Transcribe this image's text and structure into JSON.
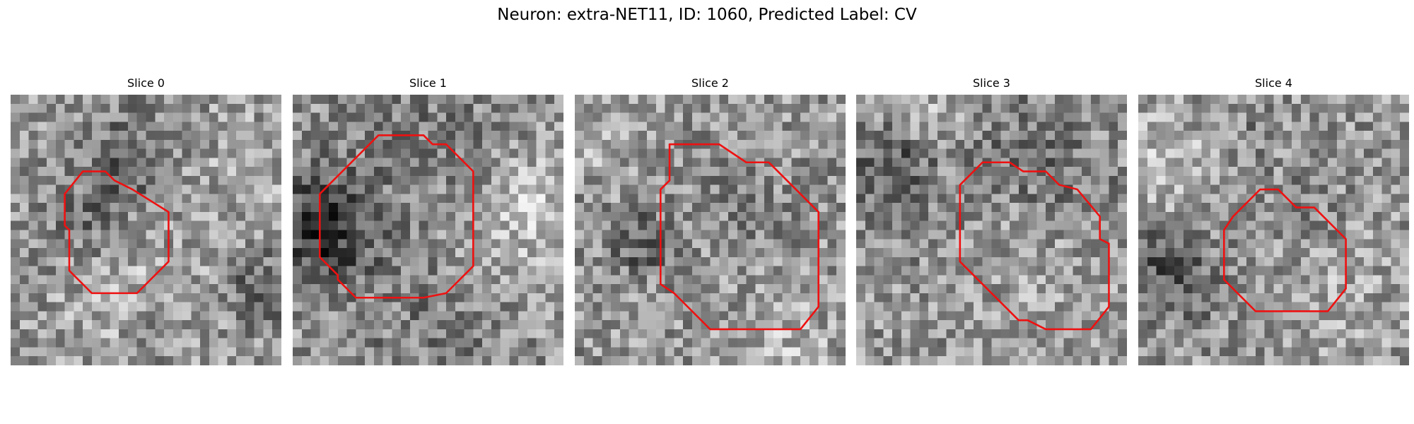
{
  "figure": {
    "suptitle": "Neuron: extra-NET11, ID: 1060, Predicted Label: CV",
    "colormap": "gray",
    "contour_color": "#ee1111",
    "grid_size": 30
  },
  "panels": [
    {
      "title": "Slice 0",
      "seed": 101,
      "dark_blobs": [
        [
          12,
          7,
          4,
          -45
        ],
        [
          16,
          26,
          3,
          -40
        ],
        [
          27,
          21,
          3,
          -60
        ],
        [
          8,
          14,
          3,
          -30
        ]
      ],
      "light_blobs": [
        [
          15,
          24,
          6,
          35
        ],
        [
          26,
          8,
          5,
          20
        ]
      ],
      "contour": [
        [
          8,
          8.5
        ],
        [
          10.5,
          8.5
        ],
        [
          11.5,
          9.5
        ],
        [
          13.5,
          10.5
        ],
        [
          17.5,
          13
        ],
        [
          17.5,
          18.5
        ],
        [
          14,
          22
        ],
        [
          9,
          22
        ],
        [
          6.5,
          19.5
        ],
        [
          6.5,
          15
        ],
        [
          6,
          14.5
        ],
        [
          6,
          11
        ]
      ]
    },
    {
      "title": "Slice 1",
      "seed": 202,
      "dark_blobs": [
        [
          2,
          14,
          4,
          -70
        ],
        [
          15,
          3,
          7,
          -25
        ],
        [
          15,
          26,
          6,
          -25
        ],
        [
          4,
          15,
          5,
          -35
        ]
      ],
      "light_blobs": [
        [
          25,
          14,
          5,
          30
        ],
        [
          27,
          10,
          4,
          25
        ]
      ],
      "contour": [
        [
          9.5,
          4.5
        ],
        [
          14.5,
          4.5
        ],
        [
          15.5,
          5.5
        ],
        [
          17,
          5.5
        ],
        [
          20,
          8.5
        ],
        [
          20,
          19
        ],
        [
          17,
          22
        ],
        [
          14.5,
          22.5
        ],
        [
          7,
          22.5
        ],
        [
          5,
          20.5
        ],
        [
          5,
          20
        ],
        [
          3,
          18
        ],
        [
          3,
          11
        ]
      ]
    },
    {
      "title": "Slice 2",
      "seed": 303,
      "dark_blobs": [
        [
          7,
          16,
          2.5,
          -60
        ],
        [
          18,
          10,
          4,
          -20
        ]
      ],
      "light_blobs": [
        [
          1,
          4,
          3,
          30
        ],
        [
          23,
          27,
          4,
          30
        ]
      ],
      "contour": [
        [
          10.5,
          5.5
        ],
        [
          16,
          5.5
        ],
        [
          17.5,
          6.5
        ],
        [
          19,
          7.5
        ],
        [
          21.5,
          7.5
        ],
        [
          27,
          13
        ],
        [
          27,
          23.5
        ],
        [
          25,
          26
        ],
        [
          15,
          26
        ],
        [
          11,
          22
        ],
        [
          9.5,
          21
        ],
        [
          9.5,
          10.5
        ],
        [
          10.5,
          9.5
        ],
        [
          10.5,
          8
        ]
      ]
    },
    {
      "title": "Slice 3",
      "seed": 404,
      "dark_blobs": [
        [
          3,
          7,
          3,
          -60
        ],
        [
          5,
          12,
          4,
          -25
        ],
        [
          18,
          5,
          4,
          -35
        ],
        [
          24,
          12,
          5,
          -25
        ]
      ],
      "light_blobs": [
        [
          7,
          1,
          3,
          30
        ],
        [
          20,
          18,
          5,
          25
        ]
      ],
      "contour": [
        [
          14,
          7.5
        ],
        [
          17,
          7.5
        ],
        [
          18.5,
          8.5
        ],
        [
          21,
          8.5
        ],
        [
          22.5,
          10
        ],
        [
          24.5,
          10.5
        ],
        [
          27,
          13.5
        ],
        [
          27,
          16
        ],
        [
          28,
          16.5
        ],
        [
          28,
          23.5
        ],
        [
          26,
          26
        ],
        [
          21,
          26
        ],
        [
          19,
          25
        ],
        [
          18,
          25
        ],
        [
          12.5,
          19.5
        ],
        [
          11.5,
          18.5
        ],
        [
          11.5,
          10
        ]
      ]
    },
    {
      "title": "Slice 4",
      "seed": 505,
      "dark_blobs": [
        [
          1,
          17,
          3,
          -55
        ],
        [
          5,
          20,
          4,
          -35
        ],
        [
          12,
          4,
          3,
          -20
        ],
        [
          18,
          13,
          3,
          -25
        ]
      ],
      "light_blobs": [
        [
          3,
          8,
          5,
          35
        ],
        [
          21,
          21,
          5,
          20
        ]
      ],
      "contour": [
        [
          13.5,
          10.5
        ],
        [
          15.5,
          10.5
        ],
        [
          17.5,
          12.5
        ],
        [
          19.5,
          12.5
        ],
        [
          23,
          16
        ],
        [
          23,
          21.5
        ],
        [
          21,
          24
        ],
        [
          13,
          24
        ],
        [
          9.5,
          20.5
        ],
        [
          9.5,
          15
        ],
        [
          10.5,
          13.5
        ]
      ]
    }
  ]
}
